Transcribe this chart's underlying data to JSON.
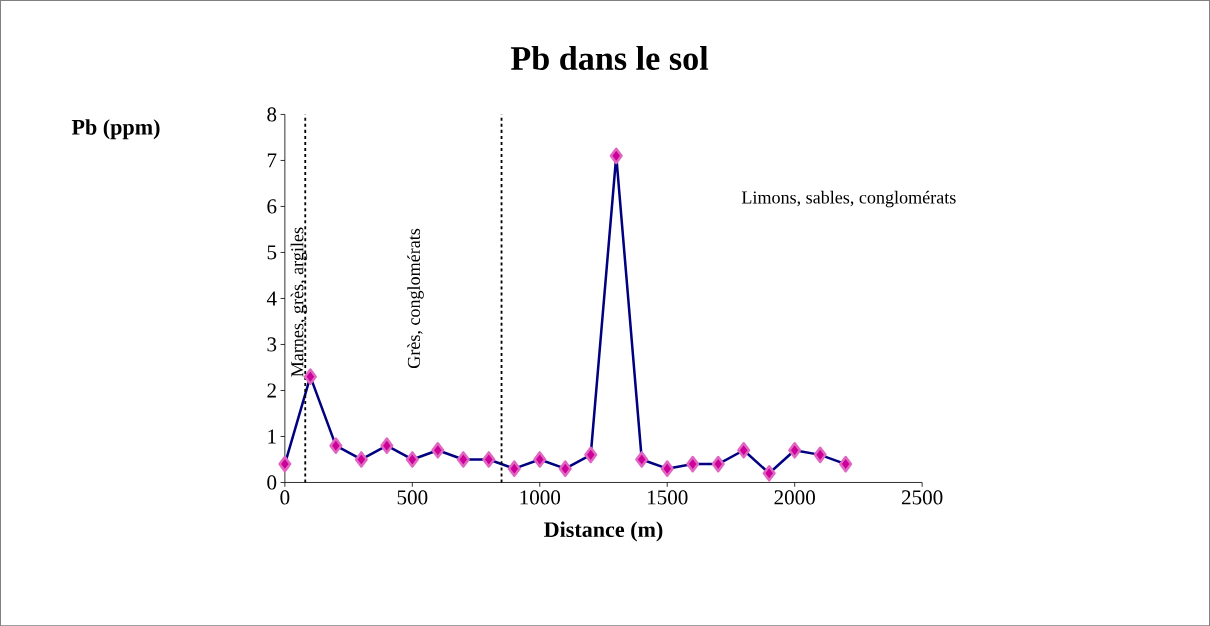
{
  "chart_data": {
    "type": "line",
    "title": "Pb dans le sol",
    "xlabel": "Distance (m)",
    "ylabel": "Pb (ppm)",
    "x": [
      0,
      100,
      200,
      300,
      400,
      500,
      600,
      700,
      800,
      900,
      1000,
      1100,
      1200,
      1300,
      1400,
      1500,
      1600,
      1700,
      1800,
      1900,
      2000,
      2100,
      2200
    ],
    "series": [
      {
        "color": "#000080",
        "values": [
          0.4,
          2.3,
          0.8,
          0.5,
          0.8,
          0.5,
          0.7,
          0.5,
          0.5,
          0.3,
          0.5,
          0.3,
          0.6,
          7.1,
          0.5,
          0.3,
          0.4,
          0.4,
          0.7,
          0.2,
          0.7,
          0.6,
          0.4
        ]
      }
    ],
    "marker": "diamond",
    "line_style": "solid",
    "xlim": [
      0,
      2500
    ],
    "ylim": [
      0,
      8
    ],
    "xticks": [
      0,
      500,
      1000,
      1500,
      2000,
      2500
    ],
    "yticks": [
      0,
      1,
      2,
      3,
      4,
      5,
      6,
      7,
      8
    ],
    "grid": false,
    "ref_lines": [
      {
        "axis": "x",
        "value": 80,
        "color": "#000000",
        "line_style": "dashed"
      },
      {
        "axis": "x",
        "value": 850,
        "color": "#000000",
        "line_style": "dashed"
      }
    ],
    "annotations": [
      "Marnes, grès, argiles",
      "Grès, conglomérats",
      "Limons, sables, conglomérats"
    ]
  }
}
